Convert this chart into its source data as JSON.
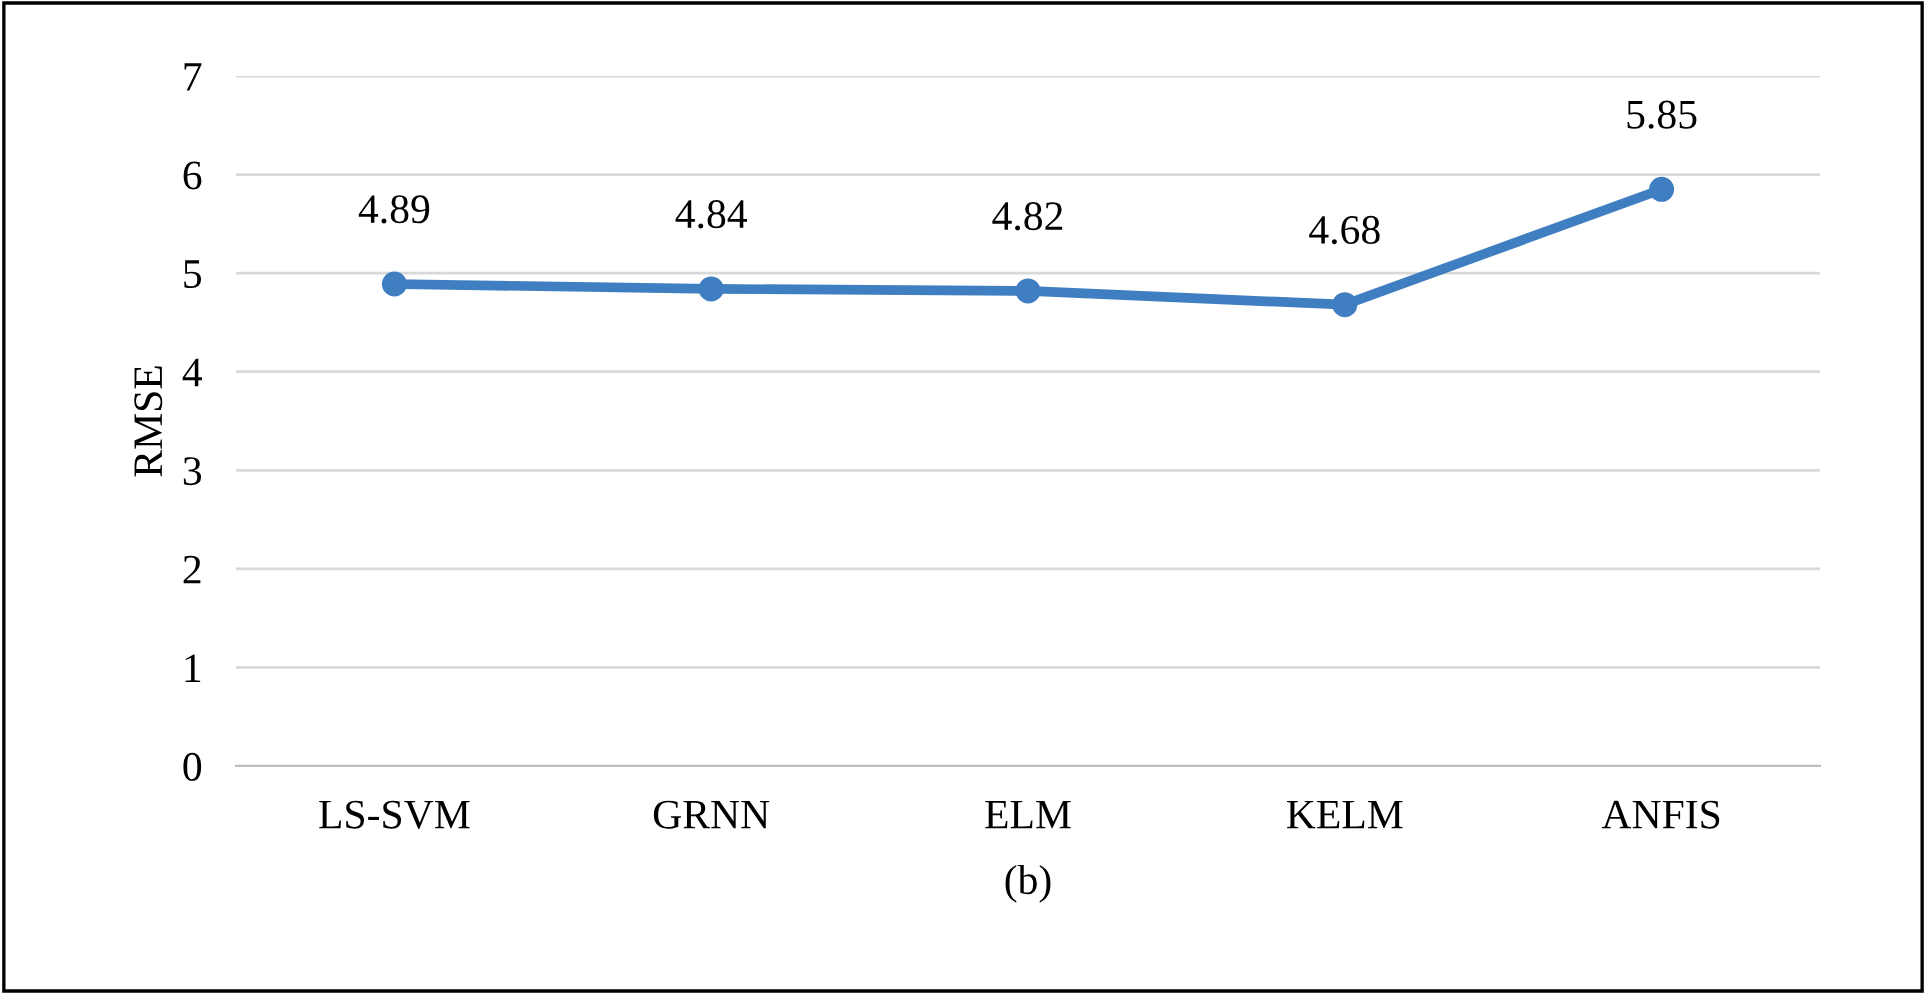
{
  "chart_data": {
    "type": "line",
    "categories": [
      "LS-SVM",
      "GRNN",
      "ELM",
      "KELM",
      "ANFIS"
    ],
    "series": [
      {
        "color": "#3f7fc1",
        "values": [
          4.89,
          4.84,
          4.82,
          4.68,
          5.85
        ]
      }
    ],
    "ylabel": "RMSE",
    "xlabel": "(b)",
    "ylim": [
      0,
      7
    ],
    "yticks": [
      0,
      1,
      2,
      3,
      4,
      5,
      6,
      7
    ],
    "grid": "y",
    "marker": "circle",
    "line_style": "solid",
    "data_labels": true,
    "legend": false
  }
}
